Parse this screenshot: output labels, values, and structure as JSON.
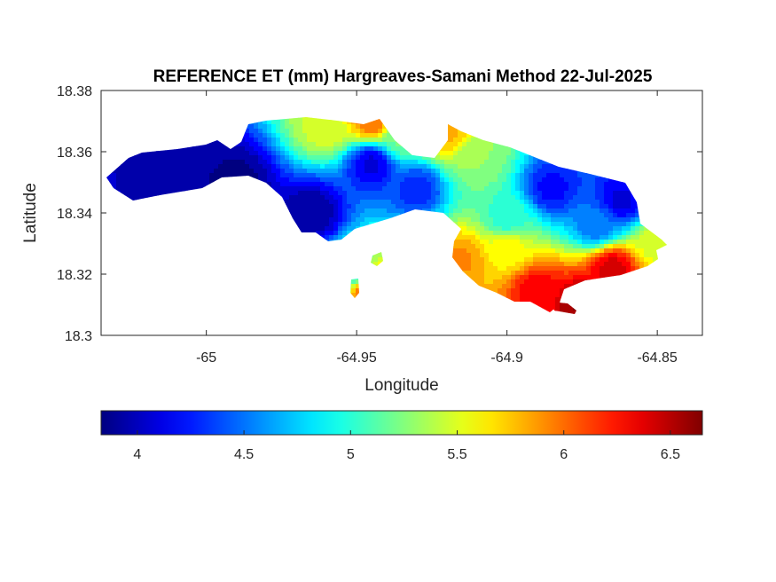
{
  "chart_data": {
    "type": "heatmap",
    "title": "REFERENCE ET (mm) Hargreaves-Samani Method  22-Jul-2025",
    "xlabel": "Longitude",
    "ylabel": "Latitude",
    "xlim": [
      -65.035,
      -64.835
    ],
    "ylim": [
      18.3,
      18.38
    ],
    "xticks": [
      -65,
      -64.95,
      -64.9,
      -64.85
    ],
    "xtick_labels": [
      "-65",
      "-64.95",
      "-64.9",
      "-64.85"
    ],
    "yticks": [
      18.38,
      18.36,
      18.34,
      18.32,
      18.3
    ],
    "ytick_labels": [
      "18.38",
      "18.36",
      "18.34",
      "18.32",
      "18.3"
    ],
    "colormap": "jet",
    "colorbar": {
      "orientation": "horizontal",
      "location": "below",
      "limits": [
        3.83,
        6.65
      ],
      "ticks": [
        4,
        4.5,
        5,
        5.5,
        6,
        6.5
      ],
      "tick_labels": [
        "4",
        "4.5",
        "5",
        "5.5",
        "6",
        "6.5"
      ]
    },
    "grid": false,
    "field_hotspots": [
      {
        "lon": -65.01,
        "lat": 18.354,
        "et": 3.9
      },
      {
        "lon": -64.99,
        "lat": 18.35,
        "et": 3.85
      },
      {
        "lon": -64.965,
        "lat": 18.34,
        "et": 3.9
      },
      {
        "lon": -64.945,
        "lat": 18.356,
        "et": 4.1
      },
      {
        "lon": -64.93,
        "lat": 18.348,
        "et": 4.3
      },
      {
        "lon": -64.885,
        "lat": 18.348,
        "et": 4.2
      },
      {
        "lon": -64.862,
        "lat": 18.344,
        "et": 4.1
      },
      {
        "lon": -64.87,
        "lat": 18.336,
        "et": 4.5
      },
      {
        "lon": -64.9,
        "lat": 18.338,
        "et": 5.0
      },
      {
        "lon": -64.935,
        "lat": 18.365,
        "et": 5.2
      },
      {
        "lon": -64.96,
        "lat": 18.368,
        "et": 5.5
      },
      {
        "lon": -64.945,
        "lat": 18.37,
        "et": 6.0
      },
      {
        "lon": -64.92,
        "lat": 18.366,
        "et": 5.8
      },
      {
        "lon": -64.91,
        "lat": 18.358,
        "et": 5.3
      },
      {
        "lon": -64.9,
        "lat": 18.328,
        "et": 5.6
      },
      {
        "lon": -64.915,
        "lat": 18.325,
        "et": 5.9
      },
      {
        "lon": -64.89,
        "lat": 18.315,
        "et": 6.3
      },
      {
        "lon": -64.875,
        "lat": 18.31,
        "et": 6.6
      },
      {
        "lon": -64.865,
        "lat": 18.322,
        "et": 6.4
      },
      {
        "lon": -64.85,
        "lat": 18.33,
        "et": 5.5
      },
      {
        "lon": -64.95,
        "lat": 18.32,
        "et": 5.0
      },
      {
        "lon": -64.946,
        "lat": 18.316,
        "et": 6.2
      }
    ]
  }
}
